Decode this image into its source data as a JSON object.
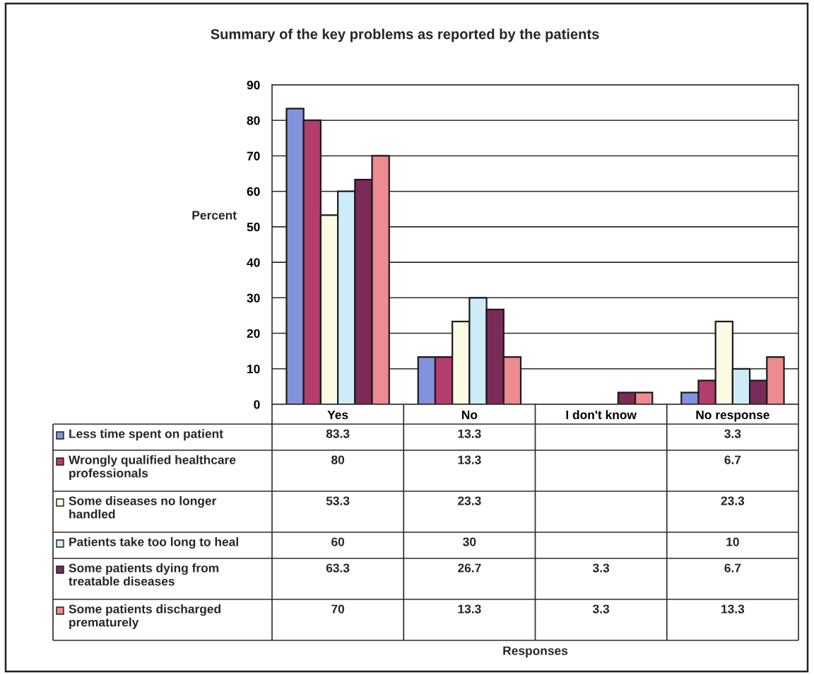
{
  "chart_data": {
    "type": "bar",
    "title": "Summary of the key problems as reported by the patients",
    "ylabel": "Percent",
    "annotations": [
      "Responses"
    ],
    "categories": [
      "Yes",
      "No",
      "I don't know",
      "No response"
    ],
    "series": [
      {
        "name": "Less time spent on patient",
        "color": "#8392dc",
        "values": [
          83.3,
          13.3,
          null,
          3.3
        ]
      },
      {
        "name": "Wrongly qualified healthcare professionals",
        "color": "#b33d6c",
        "values": [
          80,
          13.3,
          null,
          6.7
        ]
      },
      {
        "name": "Some diseases no longer handled",
        "color": "#fbfbe4",
        "values": [
          53.3,
          23.3,
          null,
          23.3
        ]
      },
      {
        "name": "Patients take too long to heal",
        "color": "#cdecfa",
        "values": [
          60,
          30,
          null,
          10
        ]
      },
      {
        "name": "Some patients dying from treatable diseases",
        "color": "#7b2b58",
        "values": [
          63.3,
          26.7,
          3.3,
          6.7
        ]
      },
      {
        "name": "Some patients discharged prematurely",
        "color": "#ec8c90",
        "values": [
          70,
          13.3,
          3.3,
          13.3
        ]
      }
    ],
    "ylim": [
      0,
      90
    ],
    "yticks": [
      0,
      10,
      20,
      30,
      40,
      50,
      60,
      70,
      80,
      90
    ],
    "grid": "y",
    "legend": "bottom",
    "data_labels": true
  }
}
